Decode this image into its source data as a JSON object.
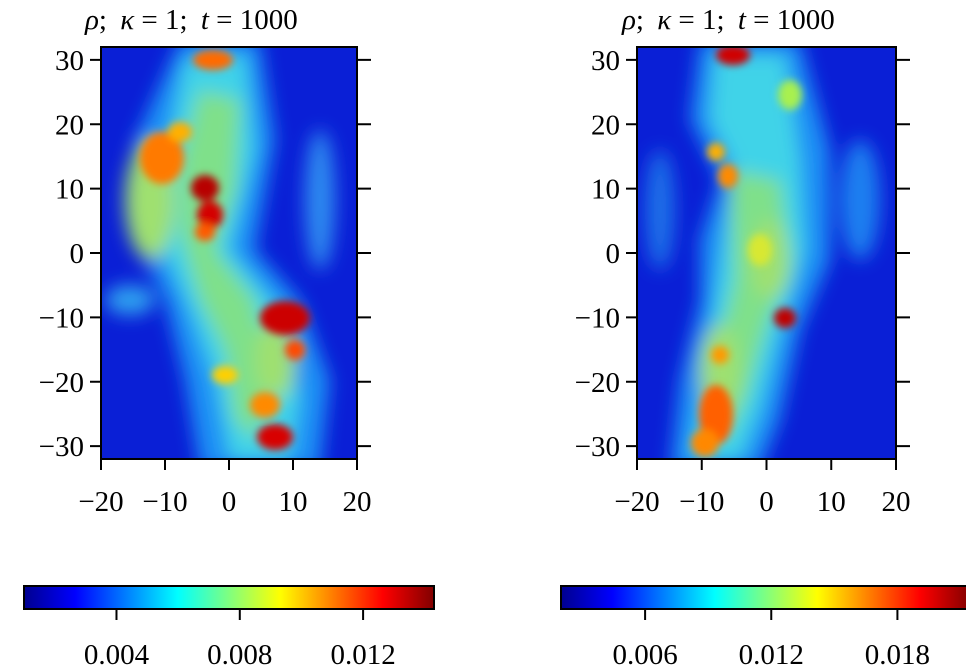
{
  "chart_data": [
    {
      "type": "heatmap",
      "title": "ρ;  κ = 1;  t = 1000",
      "title_parts": {
        "var": "ρ",
        "param": "κ",
        "param_value": "1",
        "time_var": "t",
        "time_value": "1000"
      },
      "xlim": [
        -20,
        20
      ],
      "ylim": [
        -32,
        32
      ],
      "x_ticks": [
        -20,
        -10,
        0,
        10,
        20
      ],
      "x_tick_labels": [
        "−20",
        "−10",
        "0",
        "10",
        "20"
      ],
      "y_ticks": [
        30,
        20,
        10,
        0,
        -10,
        -20,
        -30
      ],
      "y_tick_labels": [
        "30",
        "20",
        "10",
        "0",
        "−10",
        "−20",
        "−30"
      ],
      "colormap": "jet",
      "colorbar": {
        "min": 0.001,
        "max": 0.0143,
        "ticks": [
          0.004,
          0.008,
          0.012
        ],
        "tick_labels": [
          "0.004",
          "0.008",
          "0.012"
        ]
      },
      "hotspots": [
        {
          "x": -10,
          "y": 16,
          "value": 0.0133
        },
        {
          "x": -4,
          "y": 10,
          "value": 0.0143
        },
        {
          "x": -3,
          "y": 5,
          "value": 0.0138
        },
        {
          "x": -5,
          "y": 29,
          "value": 0.013
        },
        {
          "x": 7,
          "y": -10,
          "value": 0.0143
        },
        {
          "x": 4,
          "y": -28,
          "value": 0.0138
        },
        {
          "x": 9,
          "y": -14,
          "value": 0.012
        }
      ]
    },
    {
      "type": "heatmap",
      "title": "ρ;  κ = 1;  t = 1000",
      "title_parts": {
        "var": "ρ",
        "param": "κ",
        "param_value": "1",
        "time_var": "t",
        "time_value": "1000"
      },
      "xlim": [
        -20,
        20
      ],
      "ylim": [
        -32,
        32
      ],
      "x_ticks": [
        -20,
        -10,
        0,
        10,
        20
      ],
      "x_tick_labels": [
        "−20",
        "−10",
        "0",
        "10",
        "20"
      ],
      "y_ticks": [
        30,
        20,
        10,
        0,
        -10,
        -20,
        -30
      ],
      "y_tick_labels": [
        "30",
        "20",
        "10",
        "0",
        "−10",
        "−20",
        "−30"
      ],
      "colormap": "jet",
      "colorbar": {
        "min": 0.002,
        "max": 0.0215,
        "ticks": [
          0.006,
          0.012,
          0.018
        ],
        "tick_labels": [
          "0.006",
          "0.012",
          "0.018"
        ]
      },
      "hotspots": [
        {
          "x": -6,
          "y": 30,
          "value": 0.021
        },
        {
          "x": 3,
          "y": -10,
          "value": 0.0205
        },
        {
          "x": -2,
          "y": 12,
          "value": 0.016
        },
        {
          "x": -9,
          "y": 15,
          "value": 0.015
        },
        {
          "x": -8,
          "y": -25,
          "value": 0.017
        },
        {
          "x": -7,
          "y": -17,
          "value": 0.0145
        }
      ]
    }
  ]
}
